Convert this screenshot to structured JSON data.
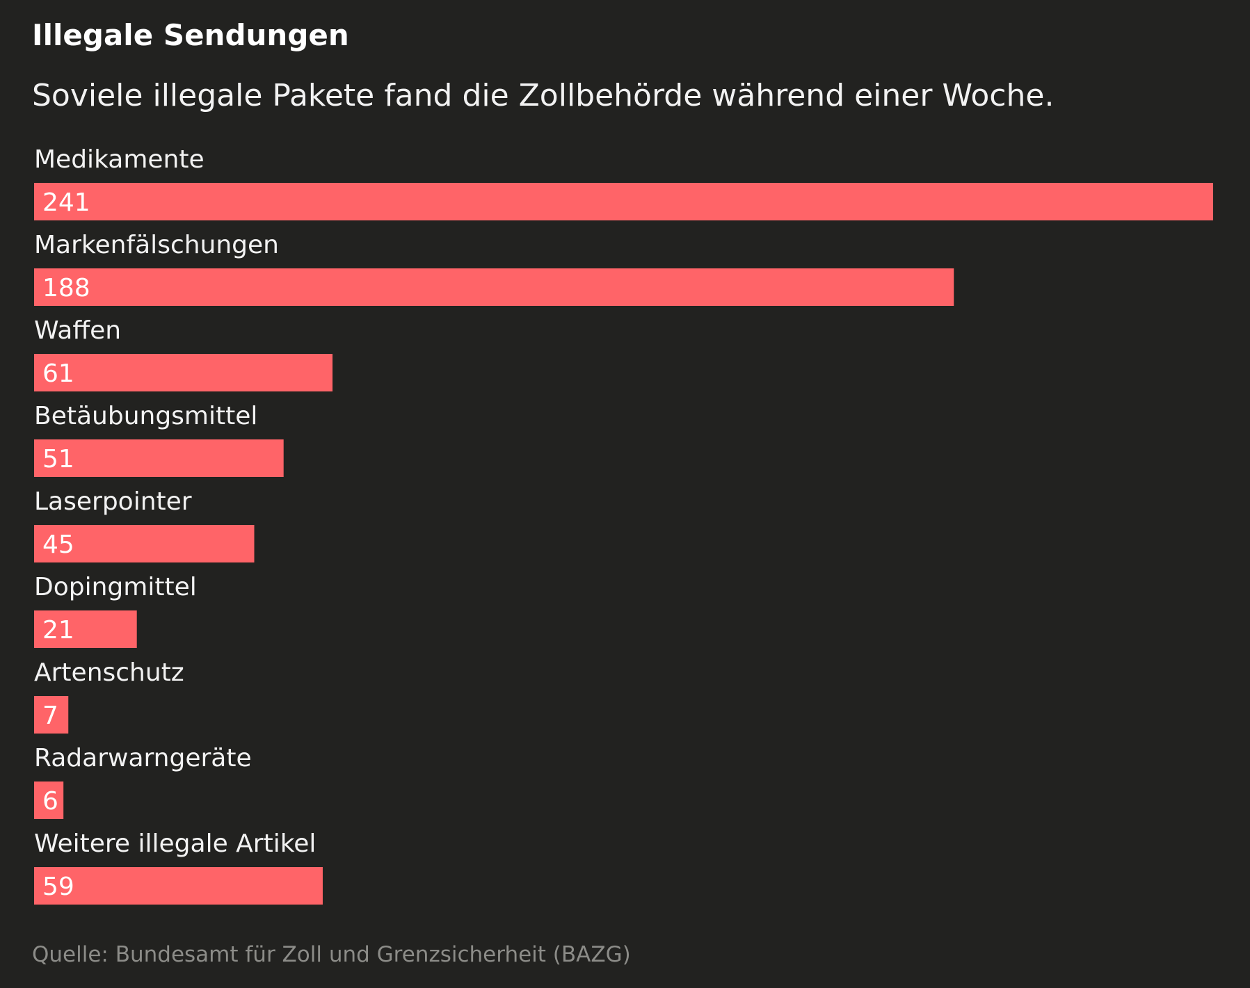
{
  "header": {
    "title": "Illegale Sendungen",
    "subtitle": "Soviele illegale Pakete fand die Zollbehörde während einer Woche."
  },
  "footer": {
    "source": "Quelle: Bundesamt für Zoll und Grenzsicherheit (BAZG)"
  },
  "colors": {
    "background": "#222220",
    "bar": "#ff6468",
    "text": "#f2f2f2",
    "source": "#8c8c88"
  },
  "chart_data": {
    "type": "bar",
    "orientation": "horizontal",
    "categories": [
      "Medikamente",
      "Markenfälschungen",
      "Waffen",
      "Betäubungsmittel",
      "Laserpointer",
      "Dopingmittel",
      "Artenschutz",
      "Radarwarngeräte",
      "Weitere illegale Artikel"
    ],
    "values": [
      241,
      188,
      61,
      51,
      45,
      21,
      7,
      6,
      59
    ],
    "xlim": [
      0,
      241
    ],
    "grid": false,
    "legend": "none"
  }
}
